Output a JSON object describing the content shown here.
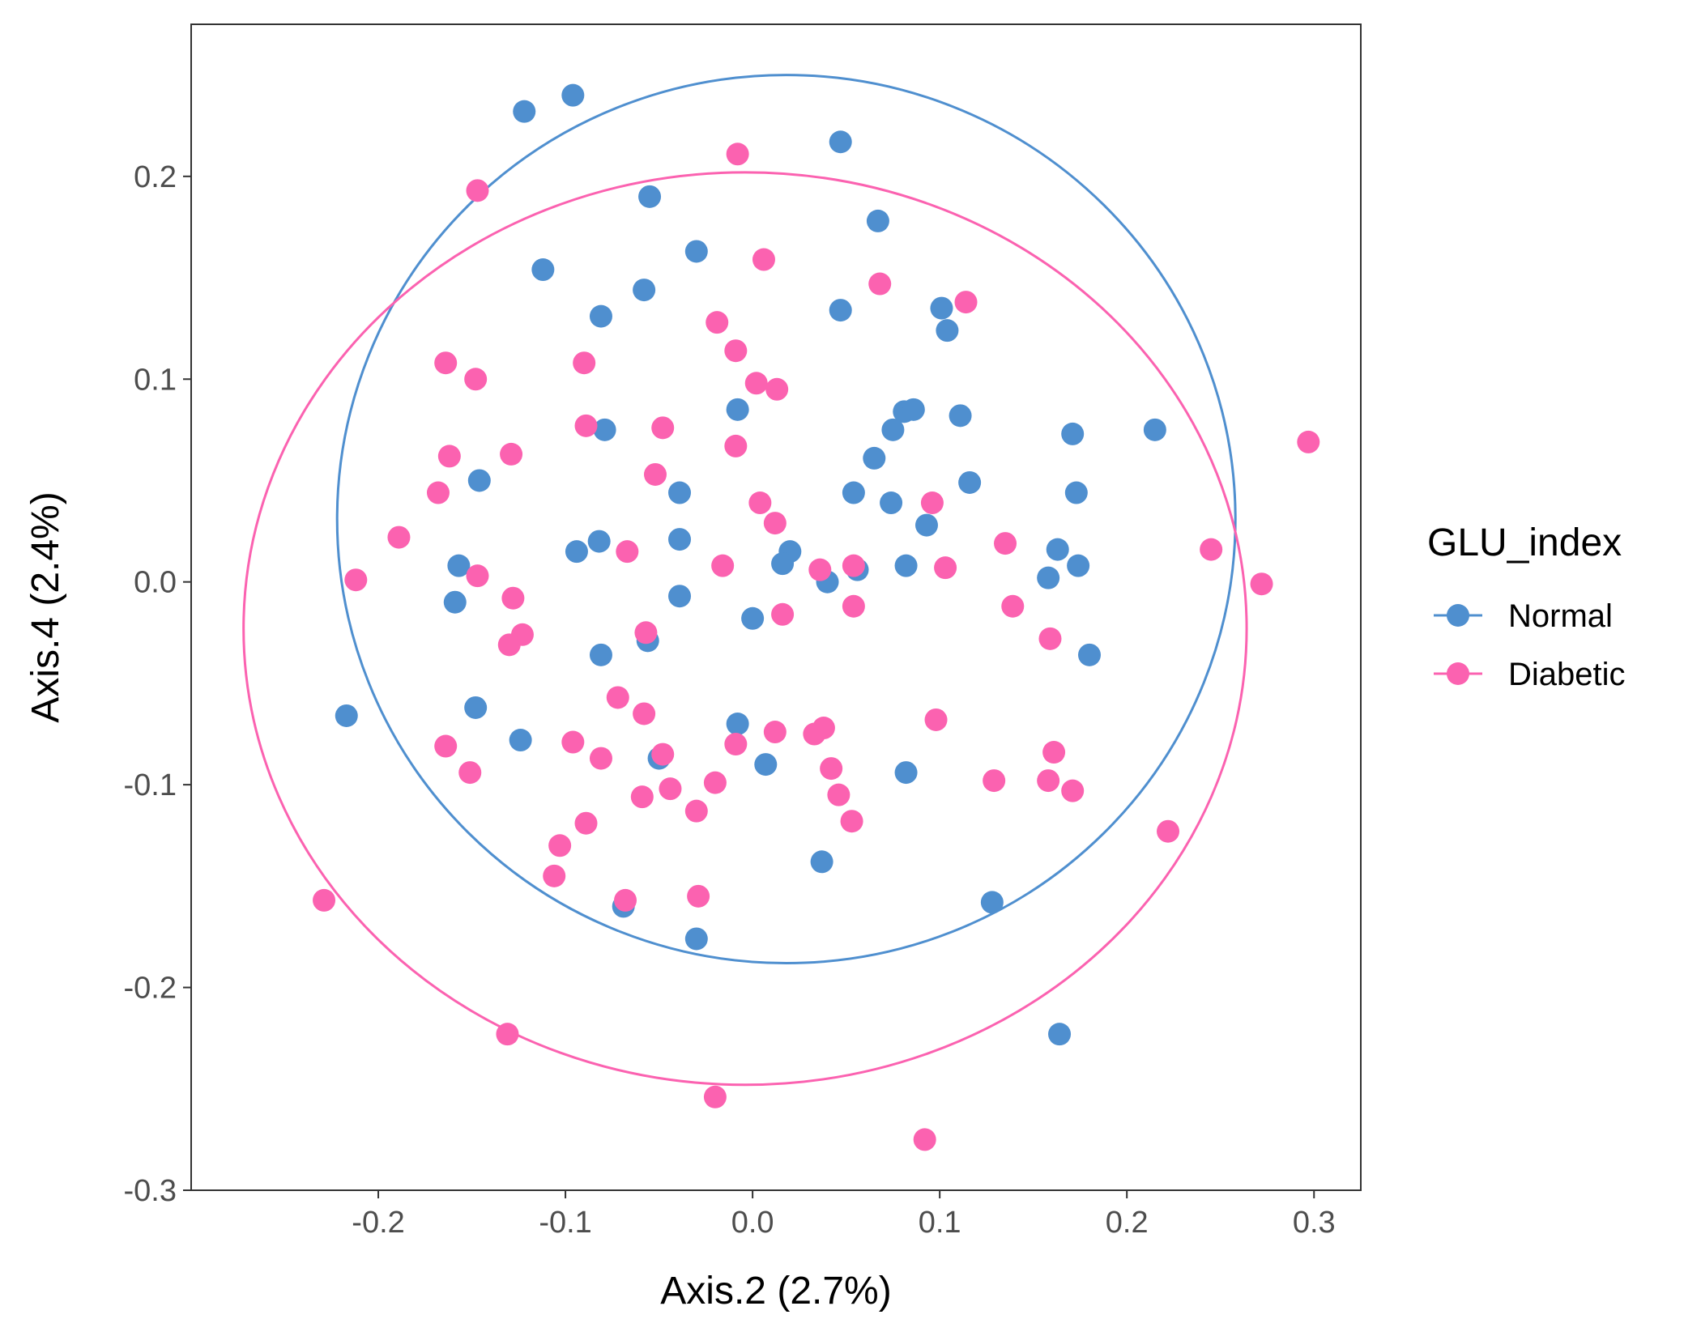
{
  "chart_data": {
    "type": "scatter",
    "xlabel": "Axis.2 (2.7%)",
    "ylabel": "Axis.4 (2.4%)",
    "xlim": [
      -0.3,
      0.325
    ],
    "ylim": [
      -0.3,
      0.275
    ],
    "x_ticks": [
      -0.2,
      -0.1,
      0.0,
      0.1,
      0.2,
      0.3
    ],
    "x_tick_labels": [
      "-0.2",
      "-0.1",
      "0.0",
      "0.1",
      "0.2",
      "0.3"
    ],
    "y_ticks": [
      -0.3,
      -0.2,
      -0.1,
      0.0,
      0.1,
      0.2
    ],
    "y_tick_labels": [
      "-0.3",
      "-0.2",
      "-0.1",
      "0.0",
      "0.1",
      "0.2"
    ],
    "grid": false,
    "legend": {
      "title": "GLU_index",
      "position": "right"
    },
    "series": [
      {
        "name": "Normal",
        "color": "#4f8fcf",
        "ellipse": {
          "center": [
            0.018,
            0.031
          ],
          "radius_x": 0.24,
          "radius_y": 0.219
        },
        "points": [
          [
            -0.122,
            0.232
          ],
          [
            -0.096,
            0.24
          ],
          [
            0.047,
            0.217
          ],
          [
            -0.055,
            0.19
          ],
          [
            -0.112,
            0.154
          ],
          [
            -0.03,
            0.163
          ],
          [
            0.067,
            0.178
          ],
          [
            -0.058,
            0.144
          ],
          [
            -0.081,
            0.131
          ],
          [
            0.047,
            0.134
          ],
          [
            0.101,
            0.135
          ],
          [
            0.104,
            0.124
          ],
          [
            -0.008,
            0.085
          ],
          [
            0.081,
            0.084
          ],
          [
            0.086,
            0.085
          ],
          [
            0.111,
            0.082
          ],
          [
            -0.079,
            0.075
          ],
          [
            0.075,
            0.075
          ],
          [
            0.215,
            0.075
          ],
          [
            0.171,
            0.073
          ],
          [
            0.065,
            0.061
          ],
          [
            -0.146,
            0.05
          ],
          [
            0.116,
            0.049
          ],
          [
            0.054,
            0.044
          ],
          [
            -0.039,
            0.044
          ],
          [
            0.074,
            0.039
          ],
          [
            0.173,
            0.044
          ],
          [
            0.093,
            0.028
          ],
          [
            -0.082,
            0.02
          ],
          [
            -0.039,
            0.021
          ],
          [
            -0.094,
            0.015
          ],
          [
            0.02,
            0.015
          ],
          [
            0.163,
            0.016
          ],
          [
            -0.157,
            0.008
          ],
          [
            0.016,
            0.009
          ],
          [
            0.082,
            0.008
          ],
          [
            0.174,
            0.008
          ],
          [
            0.056,
            0.006
          ],
          [
            0.158,
            0.002
          ],
          [
            0.04,
            0.0
          ],
          [
            -0.159,
            -0.01
          ],
          [
            -0.039,
            -0.007
          ],
          [
            0.0,
            -0.018
          ],
          [
            -0.056,
            -0.029
          ],
          [
            -0.081,
            -0.036
          ],
          [
            0.18,
            -0.036
          ],
          [
            -0.217,
            -0.066
          ],
          [
            -0.148,
            -0.062
          ],
          [
            -0.124,
            -0.078
          ],
          [
            -0.008,
            -0.07
          ],
          [
            -0.05,
            -0.087
          ],
          [
            0.007,
            -0.09
          ],
          [
            0.082,
            -0.094
          ],
          [
            0.037,
            -0.138
          ],
          [
            0.128,
            -0.158
          ],
          [
            -0.069,
            -0.16
          ],
          [
            -0.03,
            -0.176
          ],
          [
            0.164,
            -0.223
          ]
        ]
      },
      {
        "name": "Diabetic",
        "color": "#fb62b0",
        "ellipse": {
          "center": [
            -0.004,
            -0.023
          ],
          "radius_x": 0.268,
          "radius_y": 0.225
        },
        "points": [
          [
            -0.008,
            0.211
          ],
          [
            -0.147,
            0.193
          ],
          [
            0.006,
            0.159
          ],
          [
            0.068,
            0.147
          ],
          [
            0.114,
            0.138
          ],
          [
            -0.019,
            0.128
          ],
          [
            -0.009,
            0.114
          ],
          [
            -0.09,
            0.108
          ],
          [
            -0.164,
            0.108
          ],
          [
            -0.148,
            0.1
          ],
          [
            0.002,
            0.098
          ],
          [
            0.013,
            0.095
          ],
          [
            -0.089,
            0.077
          ],
          [
            -0.048,
            0.076
          ],
          [
            0.297,
            0.069
          ],
          [
            -0.009,
            0.067
          ],
          [
            -0.162,
            0.062
          ],
          [
            -0.129,
            0.063
          ],
          [
            -0.052,
            0.053
          ],
          [
            -0.168,
            0.044
          ],
          [
            0.004,
            0.039
          ],
          [
            0.096,
            0.039
          ],
          [
            0.012,
            0.029
          ],
          [
            -0.189,
            0.022
          ],
          [
            0.135,
            0.019
          ],
          [
            0.245,
            0.016
          ],
          [
            -0.067,
            0.015
          ],
          [
            -0.016,
            0.008
          ],
          [
            0.103,
            0.007
          ],
          [
            0.036,
            0.006
          ],
          [
            0.054,
            0.008
          ],
          [
            -0.212,
            0.001
          ],
          [
            -0.147,
            0.003
          ],
          [
            0.272,
            -0.001
          ],
          [
            -0.128,
            -0.008
          ],
          [
            0.016,
            -0.016
          ],
          [
            0.054,
            -0.012
          ],
          [
            0.139,
            -0.012
          ],
          [
            -0.123,
            -0.026
          ],
          [
            -0.057,
            -0.025
          ],
          [
            -0.13,
            -0.031
          ],
          [
            0.159,
            -0.028
          ],
          [
            -0.072,
            -0.057
          ],
          [
            -0.058,
            -0.065
          ],
          [
            0.098,
            -0.068
          ],
          [
            -0.164,
            -0.081
          ],
          [
            -0.096,
            -0.079
          ],
          [
            -0.009,
            -0.08
          ],
          [
            0.012,
            -0.074
          ],
          [
            0.033,
            -0.075
          ],
          [
            0.038,
            -0.072
          ],
          [
            -0.081,
            -0.087
          ],
          [
            -0.048,
            -0.085
          ],
          [
            0.161,
            -0.084
          ],
          [
            -0.151,
            -0.094
          ],
          [
            0.042,
            -0.092
          ],
          [
            -0.02,
            -0.099
          ],
          [
            -0.044,
            -0.102
          ],
          [
            0.129,
            -0.098
          ],
          [
            0.158,
            -0.098
          ],
          [
            0.171,
            -0.103
          ],
          [
            -0.059,
            -0.106
          ],
          [
            0.046,
            -0.105
          ],
          [
            -0.03,
            -0.113
          ],
          [
            -0.089,
            -0.119
          ],
          [
            0.053,
            -0.118
          ],
          [
            -0.103,
            -0.13
          ],
          [
            0.222,
            -0.123
          ],
          [
            -0.106,
            -0.145
          ],
          [
            -0.029,
            -0.155
          ],
          [
            -0.068,
            -0.157
          ],
          [
            -0.229,
            -0.157
          ],
          [
            -0.131,
            -0.223
          ],
          [
            -0.02,
            -0.254
          ],
          [
            0.092,
            -0.275
          ]
        ]
      }
    ]
  }
}
